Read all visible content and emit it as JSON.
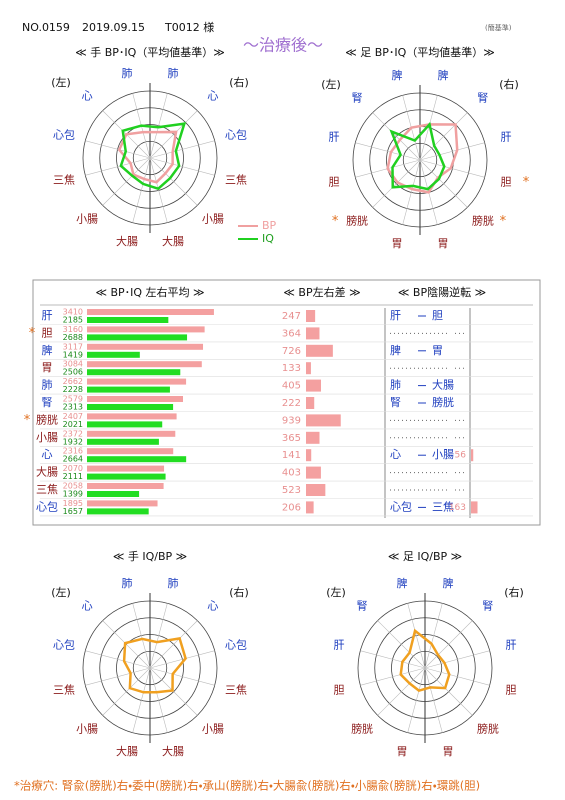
{
  "header": {
    "number": "NO.0159",
    "date": "2019.09.15",
    "patient": "T0012 様",
    "basis": "(簡基準)",
    "title": "〜治療後〜"
  },
  "radars": [
    {
      "type": "radar",
      "title": "≪ 手 BP･IQ（平均値基準）≫",
      "left_label": "(左)",
      "right_label": "(右)",
      "rlim": [
        0,
        200
      ],
      "rticks": [
        50,
        100,
        150,
        200
      ],
      "axes": [
        {
          "label": "肺",
          "color": "#1f3fbf"
        },
        {
          "label": "心",
          "color": "#1f3fbf"
        },
        {
          "label": "心包",
          "color": "#1f3fbf"
        },
        {
          "label": "三焦",
          "color": "#8b1a1a"
        },
        {
          "label": "小腸",
          "color": "#8b1a1a"
        },
        {
          "label": "大腸",
          "color": "#8b1a1a"
        },
        {
          "label": "大腸",
          "color": "#8b1a1a"
        },
        {
          "label": "小腸",
          "color": "#8b1a1a"
        },
        {
          "label": "三焦",
          "color": "#8b1a1a"
        },
        {
          "label": "心包",
          "color": "#1f3fbf"
        },
        {
          "label": "心",
          "color": "#1f3fbf"
        },
        {
          "label": "肺",
          "color": "#1f3fbf"
        }
      ],
      "series": [
        {
          "name": "BP",
          "color": "#f0a0a0",
          "values": [
            80,
            110,
            70,
            70,
            65,
            75,
            65,
            70,
            60,
            95,
            100,
            80
          ]
        },
        {
          "name": "IQ",
          "color": "#20d020",
          "values": [
            95,
            145,
            80,
            90,
            85,
            95,
            80,
            75,
            90,
            75,
            115,
            100
          ]
        }
      ]
    },
    {
      "type": "radar",
      "title": "≪ 足 BP･IQ（平均値基準）≫",
      "left_label": "(左)",
      "right_label": "(右)",
      "rlim": [
        0,
        200
      ],
      "rticks": [
        50,
        100,
        150,
        200
      ],
      "axes": [
        {
          "label": "脾",
          "color": "#1f3fbf"
        },
        {
          "label": "腎",
          "color": "#1f3fbf"
        },
        {
          "label": "肝",
          "color": "#1f3fbf"
        },
        {
          "label": "胆",
          "color": "#8b1a1a",
          "note": "*"
        },
        {
          "label": "膀胱",
          "color": "#8b1a1a",
          "note": "*"
        },
        {
          "label": "胃",
          "color": "#8b1a1a"
        },
        {
          "label": "胃",
          "color": "#8b1a1a"
        },
        {
          "label": "膀胱",
          "color": "#8b1a1a",
          "note": "*"
        },
        {
          "label": "胆",
          "color": "#8b1a1a"
        },
        {
          "label": "肝",
          "color": "#1f3fbf"
        },
        {
          "label": "腎",
          "color": "#1f3fbf"
        },
        {
          "label": "脾",
          "color": "#1f3fbf"
        }
      ],
      "series": [
        {
          "name": "BP",
          "color": "#f0a0a0",
          "values": [
            110,
            150,
            115,
            95,
            75,
            100,
            90,
            95,
            100,
            90,
            85,
            100
          ]
        },
        {
          "name": "IQ",
          "color": "#20d020",
          "values": [
            110,
            60,
            60,
            75,
            80,
            90,
            80,
            115,
            85,
            60,
            120,
            60
          ]
        }
      ]
    },
    {
      "type": "radar",
      "title": "≪ 手 IQ/BP ≫",
      "left_label": "(左)",
      "right_label": "(右)",
      "rlim": [
        0,
        200
      ],
      "rticks": [
        50,
        100,
        150,
        200
      ],
      "axes": [
        {
          "label": "肺",
          "color": "#1f3fbf"
        },
        {
          "label": "心",
          "color": "#1f3fbf"
        },
        {
          "label": "心包",
          "color": "#1f3fbf"
        },
        {
          "label": "三焦",
          "color": "#8b1a1a"
        },
        {
          "label": "小腸",
          "color": "#8b1a1a"
        },
        {
          "label": "大腸",
          "color": "#8b1a1a"
        },
        {
          "label": "大腸",
          "color": "#8b1a1a"
        },
        {
          "label": "小腸",
          "color": "#8b1a1a"
        },
        {
          "label": "三焦",
          "color": "#8b1a1a"
        },
        {
          "label": "心包",
          "color": "#1f3fbf"
        },
        {
          "label": "心",
          "color": "#1f3fbf"
        },
        {
          "label": "肺",
          "color": "#1f3fbf"
        }
      ],
      "series": [
        {
          "color": "#f0a020",
          "values": [
            80,
            125,
            110,
            70,
            95,
            75,
            75,
            85,
            60,
            80,
            105,
            90
          ]
        }
      ]
    },
    {
      "type": "radar",
      "title": "≪ 足 IQ/BP ≫",
      "left_label": "(左)",
      "right_label": "(右)",
      "rlim": [
        0,
        200
      ],
      "rticks": [
        50,
        100,
        150,
        200
      ],
      "axes": [
        {
          "label": "脾",
          "color": "#1f3fbf"
        },
        {
          "label": "腎",
          "color": "#1f3fbf"
        },
        {
          "label": "肝",
          "color": "#1f3fbf"
        },
        {
          "label": "胆",
          "color": "#8b1a1a"
        },
        {
          "label": "膀胱",
          "color": "#8b1a1a"
        },
        {
          "label": "胃",
          "color": "#8b1a1a"
        },
        {
          "label": "胃",
          "color": "#8b1a1a"
        },
        {
          "label": "膀胱",
          "color": "#8b1a1a"
        },
        {
          "label": "胆",
          "color": "#8b1a1a"
        },
        {
          "label": "肝",
          "color": "#1f3fbf"
        },
        {
          "label": "腎",
          "color": "#1f3fbf"
        },
        {
          "label": "脾",
          "color": "#1f3fbf"
        }
      ],
      "series": [
        {
          "color": "#f0a020",
          "values": [
            75,
            55,
            60,
            75,
            85,
            60,
            70,
            65,
            75,
            70,
            65,
            115
          ]
        }
      ]
    }
  ],
  "table": {
    "headers": [
      "≪ BP･IQ 左右平均 ≫",
      "≪ BP左右差 ≫",
      "≪ BP陰陽逆転 ≫"
    ],
    "bar_xlim": [
      0,
      3600
    ],
    "diff_xlim": [
      0,
      1000
    ],
    "rev_xlim": [
      0,
      1000
    ],
    "rows": [
      {
        "organ": "肝",
        "color": "#1f3fbf",
        "bp": 3410,
        "iq": 2185,
        "diff": 247,
        "rev": {
          "a": "肝",
          "b": "胆"
        }
      },
      {
        "organ": "胆",
        "color": "#8b1a1a",
        "asterisk": "*",
        "bp": 3160,
        "iq": 2688,
        "diff": 364
      },
      {
        "organ": "脾",
        "color": "#1f3fbf",
        "bp": 3117,
        "iq": 1419,
        "diff": 726,
        "rev": {
          "a": "脾",
          "b": "胃"
        }
      },
      {
        "organ": "胃",
        "color": "#8b1a1a",
        "bp": 3084,
        "iq": 2506,
        "diff": 133
      },
      {
        "organ": "肺",
        "color": "#1f3fbf",
        "bp": 2662,
        "iq": 2228,
        "diff": 405,
        "rev": {
          "a": "肺",
          "b": "大腸"
        }
      },
      {
        "organ": "腎",
        "color": "#1f3fbf",
        "bp": 2579,
        "iq": 2313,
        "diff": 222,
        "rev": {
          "a": "腎",
          "b": "膀胱"
        }
      },
      {
        "organ": "膀胱",
        "color": "#8b1a1a",
        "asterisk": "*",
        "bp": 2407,
        "iq": 2021,
        "diff": 939
      },
      {
        "organ": "小腸",
        "color": "#8b1a1a",
        "bp": 2372,
        "iq": 1932,
        "diff": 365
      },
      {
        "organ": "心",
        "color": "#1f3fbf",
        "bp": 2316,
        "iq": 2664,
        "diff": 141,
        "rev": {
          "a": "心",
          "b": "小腸",
          "value": 56
        }
      },
      {
        "organ": "大腸",
        "color": "#8b1a1a",
        "bp": 2070,
        "iq": 2111,
        "diff": 403
      },
      {
        "organ": "三焦",
        "color": "#8b1a1a",
        "bp": 2058,
        "iq": 1399,
        "diff": 523
      },
      {
        "organ": "心包",
        "color": "#1f3fbf",
        "bp": 1895,
        "iq": 1657,
        "diff": 206,
        "rev": {
          "a": "心包",
          "b": "三焦",
          "value": 163
        }
      }
    ]
  },
  "footer": "*治療穴: 腎兪(膀胱)右・委中(膀胱)右・承山(膀胱)右・大腸兪(膀胱)右・小腸兪(膀胱)右・環跳(胆)"
}
